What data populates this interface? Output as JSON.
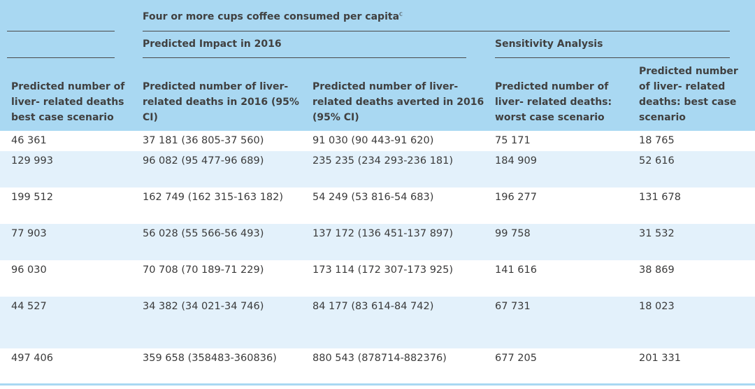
{
  "header": {
    "group_title": "Four or more cups coffee consumed per capita",
    "group_title_sup": "c",
    "predicted_impact": "Predicted Impact in 2016",
    "sensitivity": "Sensitivity Analysis",
    "columns": [
      [
        "Predicted number of",
        "liver- related deaths",
        "best case scenario"
      ],
      [
        "Predicted number of liver-",
        "related deaths in 2016 (95%",
        "CI)"
      ],
      [
        "Predicted number of liver-",
        "related deaths averted in 2016",
        "(95% CI)"
      ],
      [
        "Predicted number of",
        "liver- related deaths:",
        "worst case scenario"
      ],
      [
        "Predicted number",
        "of liver- related",
        "deaths: best case",
        "scenario"
      ]
    ]
  },
  "rows": [
    [
      "46 361",
      "37 181 (36 805-37 560)",
      "91 030 (90 443-91 620)",
      "75 171",
      "18 765"
    ],
    [
      "129 993",
      "96 082 (95 477-96 689)",
      "235 235 (234 293-236 181)",
      "184 909",
      "52 616"
    ],
    [
      "199 512",
      "162 749 (162 315-163 182)",
      "54 249 (53 816-54 683)",
      "196 277",
      "131 678"
    ],
    [
      "77 903",
      "56 028 (55 566-56 493)",
      "137 172 (136 451-137 897)",
      "99 758",
      "31 532"
    ],
    [
      "96 030",
      "70 708 (70 189-71 229)",
      "173 114 (172 307-173 925)",
      "141 616",
      "38 869"
    ],
    [
      "44 527",
      "34 382 (34 021-34 746)",
      "84 177 (83 614-84 742)",
      "67 731",
      "18 023"
    ],
    [
      "497 406",
      "359 658 (358483-360836)",
      "880 543 (878714-882376)",
      "677 205",
      "201 331"
    ]
  ]
}
